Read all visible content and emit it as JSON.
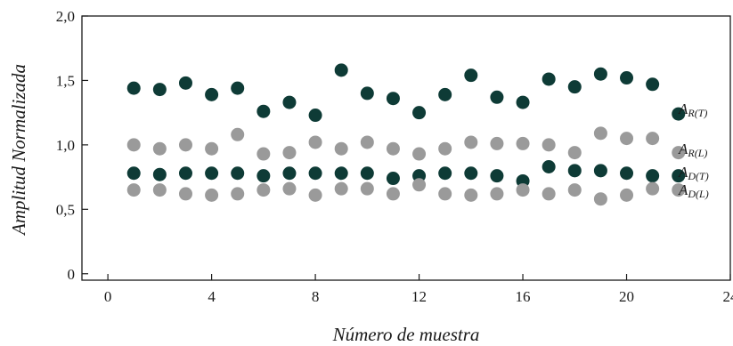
{
  "chart_data": {
    "type": "scatter",
    "title": "",
    "xlabel": "Número de muestra",
    "ylabel": "Amplitud Normalizada",
    "xlim": [
      -1,
      24
    ],
    "ylim": [
      -0.05,
      2.0
    ],
    "xticks": [
      0,
      4,
      8,
      12,
      16,
      20,
      24
    ],
    "xtick_labels": [
      "0",
      "4",
      "8",
      "12",
      "16",
      "20",
      "24"
    ],
    "yticks": [
      0,
      0.5,
      1.0,
      1.5,
      2.0
    ],
    "ytick_labels": [
      "0",
      "0,5",
      "1,0",
      "1,5",
      "2,0"
    ],
    "grid": false,
    "legend_position": "right",
    "x": [
      1,
      2,
      3,
      4,
      5,
      6,
      7,
      8,
      9,
      10,
      11,
      12,
      13,
      14,
      15,
      16,
      17,
      18,
      19,
      20,
      21,
      22
    ],
    "series": [
      {
        "name": "AR(T)",
        "main": "A",
        "sub": "R(T)",
        "color": "#0e3b36",
        "values": [
          1.44,
          1.43,
          1.48,
          1.39,
          1.44,
          1.26,
          1.33,
          1.23,
          1.58,
          1.4,
          1.36,
          1.25,
          1.39,
          1.54,
          1.37,
          1.33,
          1.51,
          1.45,
          1.55,
          1.52,
          1.47,
          1.24
        ]
      },
      {
        "name": "AR(L)",
        "main": "A",
        "sub": "R(L)",
        "color": "#9a9a9a",
        "values": [
          1.0,
          0.97,
          1.0,
          0.97,
          1.08,
          0.93,
          0.94,
          1.02,
          0.97,
          1.02,
          0.97,
          0.93,
          0.97,
          1.02,
          1.01,
          1.01,
          1.0,
          0.94,
          1.09,
          1.05,
          1.05,
          0.94
        ]
      },
      {
        "name": "AD(T)",
        "main": "A",
        "sub": "D(T)",
        "color": "#0e3b36",
        "values": [
          0.78,
          0.77,
          0.78,
          0.78,
          0.78,
          0.76,
          0.78,
          0.78,
          0.78,
          0.78,
          0.74,
          0.76,
          0.78,
          0.78,
          0.76,
          0.72,
          0.83,
          0.8,
          0.8,
          0.78,
          0.76,
          0.76
        ]
      },
      {
        "name": "AD(L)",
        "main": "A",
        "sub": "D(L)",
        "color": "#9a9a9a",
        "values": [
          0.65,
          0.65,
          0.62,
          0.61,
          0.62,
          0.65,
          0.66,
          0.61,
          0.66,
          0.66,
          0.62,
          0.69,
          0.62,
          0.61,
          0.62,
          0.65,
          0.62,
          0.65,
          0.58,
          0.61,
          0.66,
          0.65
        ]
      }
    ]
  }
}
